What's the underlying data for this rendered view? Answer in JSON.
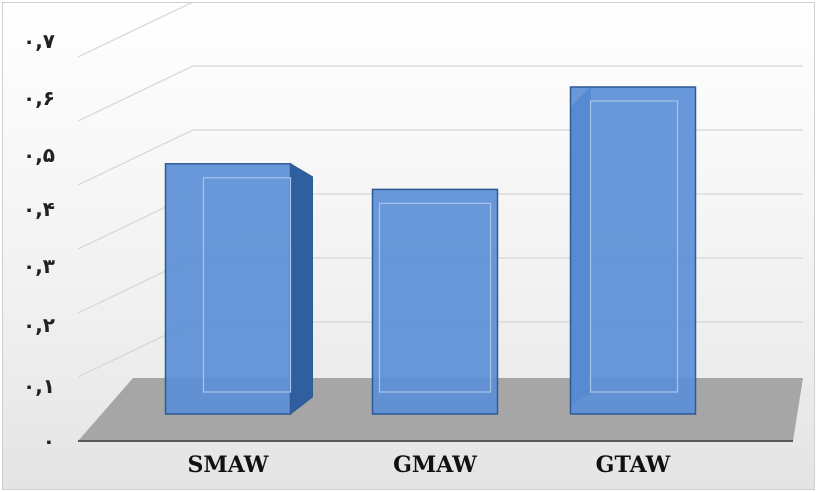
{
  "chart_data": {
    "type": "bar",
    "categories": [
      "SMAW",
      "GMAW",
      "GTAW"
    ],
    "values": [
      0.48,
      0.44,
      0.6
    ],
    "ylim": [
      0,
      0.7
    ],
    "yticks": [
      0,
      0.1,
      0.2,
      0.3,
      0.4,
      0.5,
      0.6,
      0.7
    ],
    "ytick_labels": [
      "٠",
      "٠,١",
      "٠,٢",
      "٠,٣",
      "٠,۴",
      "٠,۵",
      "٠,۶",
      "٠,٧"
    ],
    "grid": true,
    "style": "3d-column",
    "colors": {
      "bar_front": "#5b8fd6",
      "bar_side": "#2f5f9e",
      "bar_top": "#7fa9e3",
      "bar_stroke": "#2e5a96",
      "floor": "#a6a6a6",
      "grid": "#d6d6d6"
    }
  }
}
